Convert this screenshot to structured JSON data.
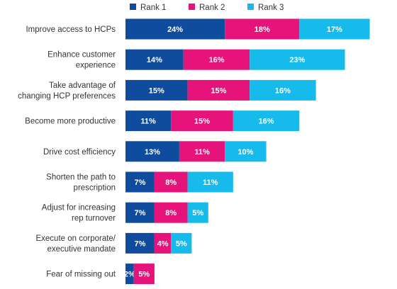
{
  "chart_data": {
    "type": "bar",
    "orientation": "horizontal",
    "stacked": true,
    "title": "",
    "xlabel": "",
    "ylabel": "",
    "xlim": [
      0,
      70
    ],
    "legend_position": "top",
    "grid": false,
    "categories": [
      [
        "Improve access to HCPs"
      ],
      [
        "Enhance customer",
        "experience"
      ],
      [
        "Take advantage of",
        "changing HCP preferences"
      ],
      [
        "Become more productive"
      ],
      [
        "Drive cost efficiency"
      ],
      [
        "Shorten the path to",
        "prescription"
      ],
      [
        "Adjust for increasing",
        "rep turnover"
      ],
      [
        "Execute on corporate/",
        "executive mandate"
      ],
      [
        "Fear of missing out"
      ]
    ],
    "series": [
      {
        "name": "Rank 1",
        "color": "#0F4C9E",
        "values": [
          24,
          14,
          15,
          11,
          13,
          7,
          7,
          7,
          2
        ]
      },
      {
        "name": "Rank 2",
        "color": "#E5137A",
        "values": [
          18,
          16,
          15,
          15,
          11,
          8,
          8,
          4,
          5
        ]
      },
      {
        "name": "Rank 3",
        "color": "#17BBEB",
        "values": [
          17,
          23,
          16,
          16,
          10,
          11,
          5,
          5,
          null
        ]
      }
    ],
    "value_suffix": "%"
  }
}
